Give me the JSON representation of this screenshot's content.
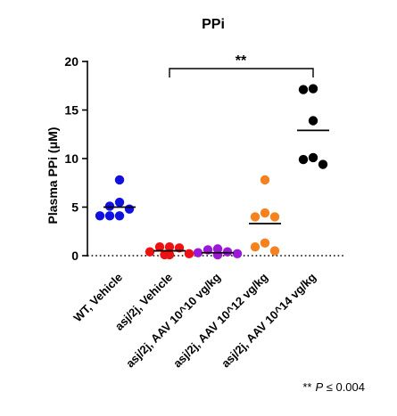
{
  "chart_data": {
    "type": "scatter",
    "title": "PPi",
    "ylabel": "Plasma PPi (μM)",
    "xlabel": "",
    "ylim": [
      0,
      20
    ],
    "yticks": [
      0,
      5,
      10,
      15,
      20
    ],
    "reference_line_y": 0,
    "grid": false,
    "legend": "none",
    "categories": [
      "WT, Vehicle",
      "asj/2j, Vehicle",
      "asj/2j, AAV 10^10 vg/kg",
      "asj/2j, AAV 10^12 vg/kg",
      "asj/2j, AAV 10^14 vg/kg"
    ],
    "series": [
      {
        "category": "WT, Vehicle",
        "color": "#1010e0",
        "points": [
          7.8,
          5.5,
          5.1,
          4.8,
          4.1,
          4.1,
          4.1
        ],
        "mean": 5.0
      },
      {
        "category": "asj/2j, Vehicle",
        "color": "#ee1111",
        "points": [
          0.9,
          0.9,
          0.8,
          0.4,
          0.2,
          0.1,
          0.1
        ],
        "mean": 0.5
      },
      {
        "category": "asj/2j, AAV 10^10 vg/kg",
        "color": "#9b19d6",
        "points": [
          0.7,
          0.6,
          0.4,
          0.3,
          0.2,
          0.1,
          0.1
        ],
        "mean": 0.3
      },
      {
        "category": "asj/2j, AAV 10^12 vg/kg",
        "color": "#f5821f",
        "points": [
          7.8,
          4.4,
          4.0,
          4.0,
          1.3,
          0.9,
          0.5
        ],
        "mean": 3.3
      },
      {
        "category": "asj/2j, AAV 10^14 vg/kg",
        "color": "#000000",
        "points": [
          17.2,
          17.1,
          13.9,
          10.1,
          9.9,
          9.4
        ],
        "mean": 12.9
      }
    ],
    "annotations": {
      "bracket_label": "**",
      "bracket_from": "asj/2j, Vehicle",
      "bracket_to": "asj/2j, AAV 10^14 vg/kg",
      "footnote_stars": "**",
      "footnote_p": "P",
      "footnote_rest": " ≤ 0.004"
    }
  }
}
